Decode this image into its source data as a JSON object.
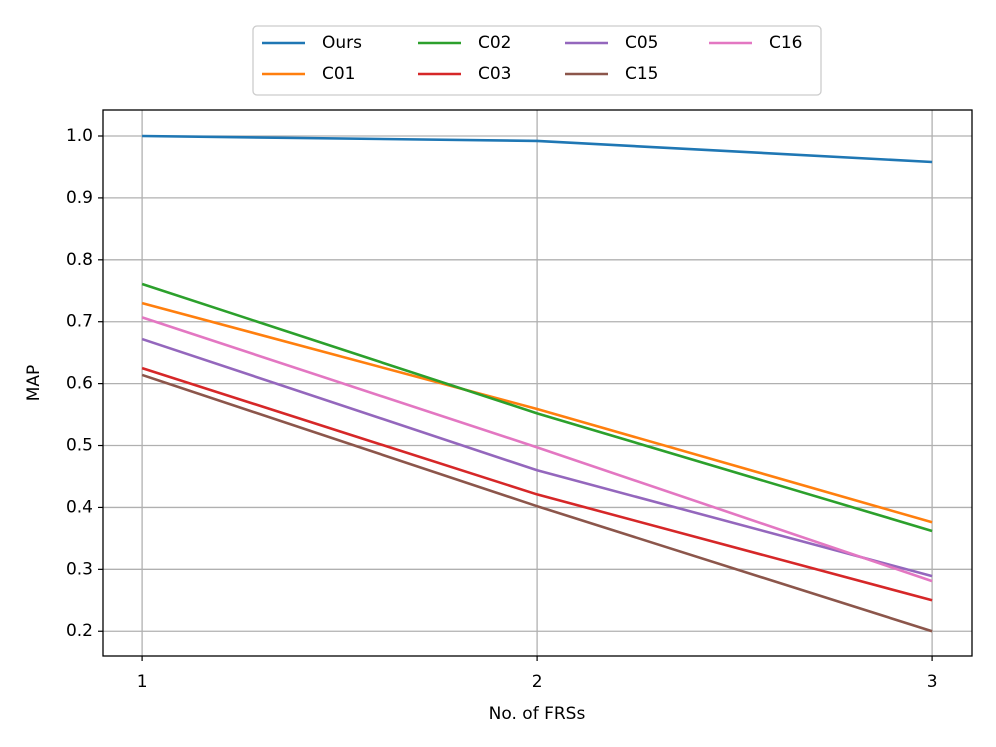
{
  "chart_data": {
    "type": "line",
    "x_label": "No. of FRSs",
    "y_label": "MAP",
    "x": [
      1,
      2,
      3
    ],
    "series": [
      {
        "name": "Ours",
        "color": "#1f77b4",
        "values": [
          1.0,
          0.992,
          0.958
        ]
      },
      {
        "name": "C01",
        "color": "#ff7f0e",
        "values": [
          0.73,
          0.559,
          0.376
        ]
      },
      {
        "name": "C02",
        "color": "#2ca02c",
        "values": [
          0.761,
          0.552,
          0.362
        ]
      },
      {
        "name": "C03",
        "color": "#d62728",
        "values": [
          0.625,
          0.421,
          0.25
        ]
      },
      {
        "name": "C05",
        "color": "#9467bd",
        "values": [
          0.672,
          0.46,
          0.289
        ]
      },
      {
        "name": "C15",
        "color": "#8c564b",
        "values": [
          0.614,
          0.402,
          0.2
        ]
      },
      {
        "name": "C16",
        "color": "#e377c2",
        "values": [
          0.707,
          0.497,
          0.281
        ]
      }
    ],
    "xlim": [
      0.901,
      3.101
    ],
    "xticks": [
      1,
      2,
      3
    ],
    "ylim": [
      0.16,
      1.042
    ],
    "yticks": [
      0.2,
      0.3,
      0.4,
      0.5,
      0.6,
      0.7,
      0.8,
      0.9,
      {
        "value": 1.0,
        "label": "1.0"
      }
    ],
    "grid": true,
    "legend": "top"
  }
}
